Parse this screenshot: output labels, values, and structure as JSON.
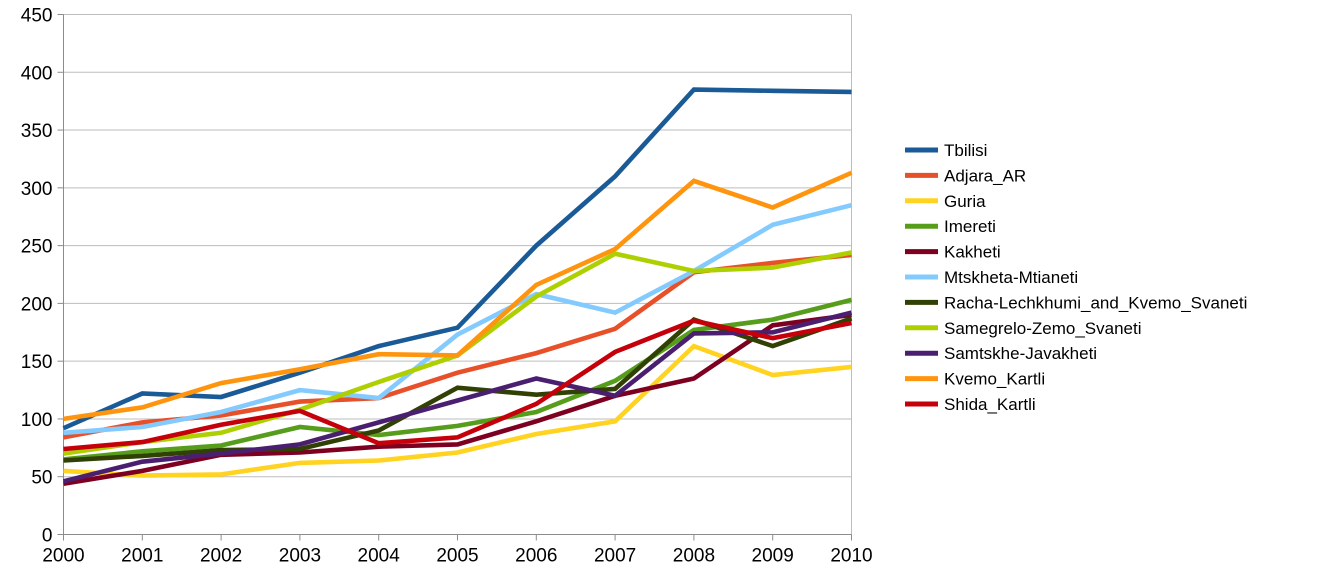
{
  "chart_data": {
    "type": "line",
    "title": "",
    "xlabel": "",
    "ylabel": "",
    "categories": [
      "2000",
      "2001",
      "2002",
      "2003",
      "2004",
      "2005",
      "2006",
      "2007",
      "2008",
      "2009",
      "2010"
    ],
    "x": [
      2000,
      2001,
      2002,
      2003,
      2004,
      2005,
      2006,
      2007,
      2008,
      2009,
      2010
    ],
    "ylim": [
      0,
      450
    ],
    "yticks": [
      0,
      50,
      100,
      150,
      200,
      250,
      300,
      350,
      400,
      450
    ],
    "grid": true,
    "legend_position": "right",
    "axis_color": "#8c8c8c",
    "gridline_color": "#bdbdbd",
    "series": [
      {
        "name": "Tbilisi",
        "color": "#1A5A96",
        "values": [
          92,
          122,
          119,
          140,
          163,
          179,
          250,
          310,
          385,
          384,
          383
        ]
      },
      {
        "name": "Adjara_AR",
        "color": "#E8502A",
        "values": [
          84,
          97,
          103,
          115,
          118,
          140,
          157,
          178,
          227,
          235,
          242
        ]
      },
      {
        "name": "Guria",
        "color": "#FFD320",
        "values": [
          55,
          51,
          52,
          62,
          64,
          71,
          87,
          98,
          163,
          138,
          145
        ]
      },
      {
        "name": "Imereti",
        "color": "#579D1C",
        "values": [
          65,
          72,
          77,
          93,
          86,
          94,
          106,
          133,
          177,
          186,
          203
        ]
      },
      {
        "name": "Kakheti",
        "color": "#7E0021",
        "values": [
          44,
          55,
          69,
          71,
          76,
          78,
          98,
          120,
          135,
          181,
          190
        ]
      },
      {
        "name": "Mtskheta-Mtianeti",
        "color": "#83CAFF",
        "values": [
          88,
          93,
          106,
          125,
          118,
          173,
          208,
          192,
          228,
          268,
          285
        ]
      },
      {
        "name": "Racha-Lechkhumi_and_Kvemo_Svaneti",
        "color": "#314004",
        "values": [
          64,
          68,
          73,
          74,
          90,
          127,
          121,
          126,
          186,
          163,
          187
        ]
      },
      {
        "name": "Samegrelo-Zemo_Svaneti",
        "color": "#AECF00",
        "values": [
          70,
          80,
          88,
          108,
          132,
          155,
          206,
          243,
          228,
          231,
          244
        ]
      },
      {
        "name": "Samtskhe-Javakheti",
        "color": "#4B1F6F",
        "values": [
          46,
          63,
          70,
          78,
          97,
          116,
          135,
          120,
          174,
          175,
          192
        ]
      },
      {
        "name": "Kvemo_Kartli",
        "color": "#FF950E",
        "values": [
          100,
          110,
          131,
          143,
          156,
          155,
          216,
          247,
          306,
          283,
          313
        ]
      },
      {
        "name": "Shida_Kartli",
        "color": "#C5000B",
        "values": [
          74,
          80,
          95,
          107,
          79,
          84,
          113,
          158,
          185,
          170,
          183
        ]
      }
    ]
  }
}
